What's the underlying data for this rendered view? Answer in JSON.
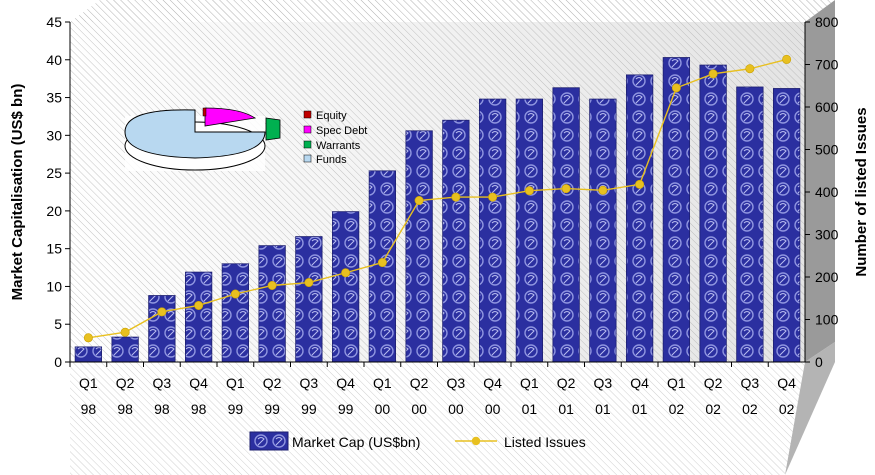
{
  "chart_data": {
    "type": "bar",
    "categories": [
      [
        "Q1",
        "98"
      ],
      [
        "Q2",
        "98"
      ],
      [
        "Q3",
        "98"
      ],
      [
        "Q4",
        "98"
      ],
      [
        "Q1",
        "99"
      ],
      [
        "Q2",
        "99"
      ],
      [
        "Q3",
        "99"
      ],
      [
        "Q4",
        "99"
      ],
      [
        "Q1",
        "00"
      ],
      [
        "Q2",
        "00"
      ],
      [
        "Q3",
        "00"
      ],
      [
        "Q4",
        "00"
      ],
      [
        "Q1",
        "01"
      ],
      [
        "Q2",
        "01"
      ],
      [
        "Q3",
        "01"
      ],
      [
        "Q4",
        "01"
      ],
      [
        "Q1",
        "02"
      ],
      [
        "Q2",
        "02"
      ],
      [
        "Q3",
        "02"
      ],
      [
        "Q4",
        "02"
      ]
    ],
    "series": [
      {
        "name": "Market Cap (US$bn)",
        "type": "bar",
        "axis": "left",
        "color": "#2b2fa0",
        "values": [
          2,
          3.3,
          8.8,
          11.9,
          13,
          15.4,
          16.6,
          19.9,
          25.3,
          30.6,
          32,
          34.8,
          34.8,
          36.3,
          34.8,
          38,
          40.3,
          39.3,
          36.4,
          36.2
        ]
      },
      {
        "name": "Listed Issues",
        "type": "line",
        "axis": "right",
        "color": "#e8c020",
        "values": [
          57,
          70,
          118,
          133,
          160,
          180,
          187,
          210,
          234,
          380,
          388,
          388,
          403,
          408,
          404,
          418,
          645,
          678,
          690,
          712
        ]
      }
    ],
    "ylabel": "Market Capitalisation (US$ bn)",
    "y2label": "Number of listed Issues",
    "ylim": [
      0,
      45
    ],
    "yticks": [
      0,
      5,
      10,
      15,
      20,
      25,
      30,
      35,
      40,
      45
    ],
    "y2lim": [
      0,
      800
    ],
    "y2ticks": [
      0,
      100,
      200,
      300,
      400,
      500,
      600,
      700,
      800
    ],
    "legend_position": "bottom",
    "grid": false,
    "inset_pie": {
      "type": "pie",
      "labels": [
        "Equity",
        "Spec Debt",
        "Warrants",
        "Funds"
      ],
      "colors": [
        "#c00000",
        "#ff00ff",
        "#00b050",
        "#b8d8f0"
      ],
      "values": [
        0.8,
        9.2,
        3.0,
        87.0
      ]
    }
  }
}
